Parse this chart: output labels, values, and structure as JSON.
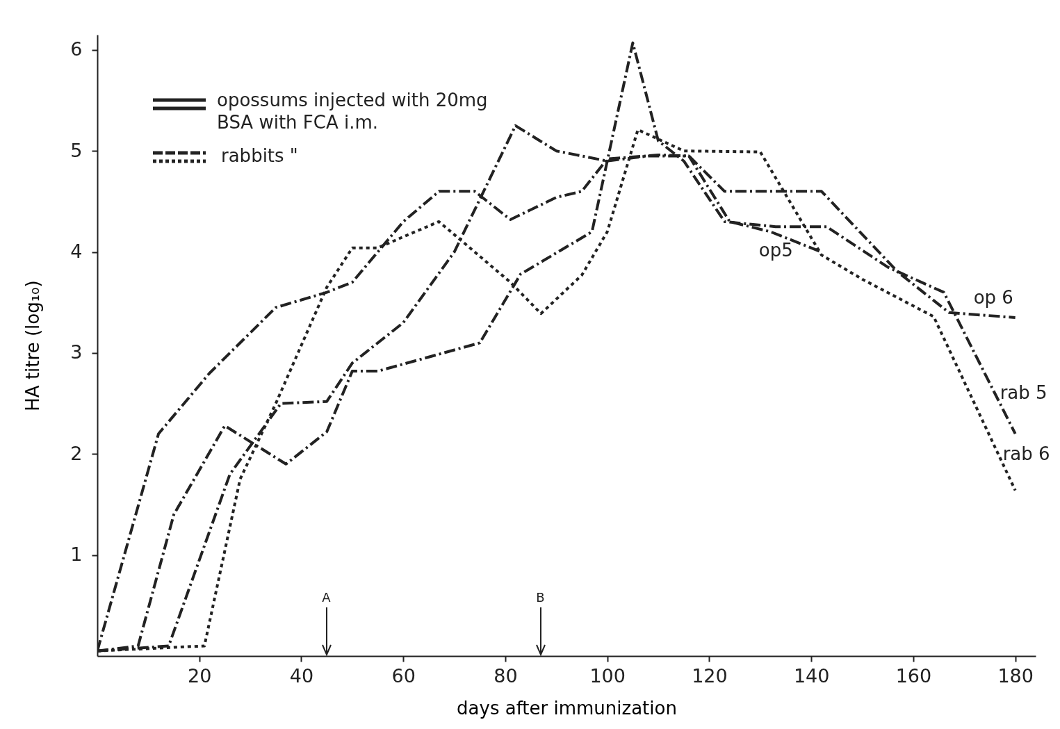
{
  "chart_data": {
    "type": "line",
    "xlabel": "days after immunization",
    "ylabel": "HA titre (log₁₀)",
    "xlim": [
      0,
      184
    ],
    "ylim": [
      0,
      6.15
    ],
    "xticks": [
      20,
      40,
      60,
      80,
      100,
      120,
      140,
      160,
      180
    ],
    "yticks": [
      1,
      2,
      3,
      4,
      5,
      6
    ],
    "grid": false,
    "marker": "none",
    "series": [
      {
        "name": "op5",
        "color": "#222222",
        "line_style": "dashed",
        "x": [
          0,
          14,
          26,
          36,
          45,
          50,
          60,
          70,
          82,
          90,
          100,
          108,
          116,
          124,
          132,
          142
        ],
        "values": [
          0.05,
          0.1,
          1.8,
          2.5,
          2.52,
          2.9,
          3.3,
          4.0,
          5.25,
          5.0,
          4.9,
          4.95,
          4.95,
          4.3,
          4.2,
          4.0
        ]
      },
      {
        "name": "op 6",
        "color": "#222222",
        "line_style": "dashed",
        "x": [
          0,
          12,
          22,
          35,
          45,
          50,
          55,
          60,
          67,
          74,
          81,
          90,
          95,
          100,
          110,
          116,
          123,
          132,
          142,
          157,
          167,
          180
        ],
        "values": [
          0.05,
          2.2,
          2.8,
          3.45,
          3.6,
          3.7,
          4.0,
          4.3,
          4.6,
          4.6,
          4.32,
          4.54,
          4.6,
          4.92,
          4.96,
          4.95,
          4.6,
          4.6,
          4.6,
          3.8,
          3.4,
          3.35
        ]
      },
      {
        "name": "rab 5",
        "color": "#222222",
        "line_style": "dashed",
        "x": [
          0,
          8,
          15,
          25,
          37,
          45,
          50,
          55,
          75,
          83,
          97,
          105,
          110,
          115,
          123,
          133,
          143,
          155,
          166,
          180
        ],
        "values": [
          0.05,
          0.1,
          1.4,
          2.28,
          1.9,
          2.22,
          2.82,
          2.82,
          3.1,
          3.78,
          4.2,
          6.07,
          5.1,
          4.9,
          4.3,
          4.25,
          4.25,
          3.85,
          3.6,
          2.2
        ]
      },
      {
        "name": "rab 6",
        "color": "#222222",
        "line_style": "dotted",
        "x": [
          0,
          21,
          28,
          35,
          45,
          50,
          55,
          60,
          67,
          81,
          87,
          95,
          100,
          106,
          115,
          130,
          142,
          150,
          164,
          180
        ],
        "values": [
          0.05,
          0.1,
          1.75,
          2.5,
          3.65,
          4.04,
          4.04,
          4.15,
          4.3,
          3.7,
          3.39,
          3.77,
          4.2,
          5.21,
          5.0,
          4.99,
          3.97,
          3.73,
          3.36,
          1.64
        ]
      }
    ],
    "annotations": [
      "opossums injected with 20mg BSA with FCA i.m.",
      "rabbits \"",
      "A",
      "B"
    ]
  }
}
